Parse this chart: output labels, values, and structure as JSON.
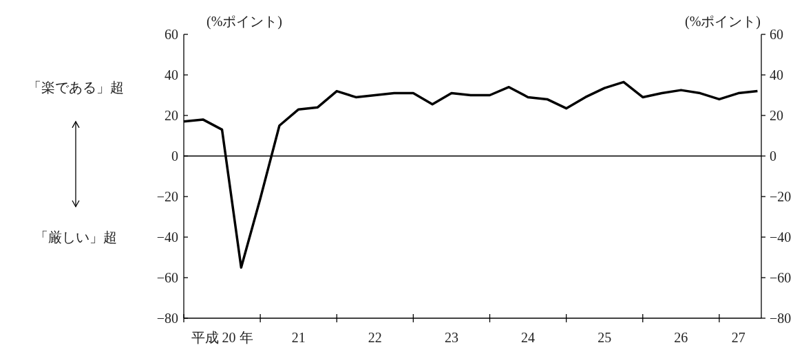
{
  "chart_data": {
    "type": "line",
    "ylabel": "(%ポイント)",
    "y2label": "(%ポイント)",
    "annotations": [
      "「楽である」超",
      "「厳しい」超"
    ],
    "categories": [
      null,
      null,
      "平成 20 年",
      null,
      null,
      null,
      "21",
      null,
      null,
      null,
      "22",
      null,
      null,
      null,
      "23",
      null,
      null,
      null,
      "24",
      null,
      null,
      null,
      "25",
      null,
      null,
      null,
      "26",
      null,
      null,
      "27",
      null
    ],
    "series": [
      {
        "color": "#000000",
        "values": [
          17,
          18,
          13,
          -55,
          -21,
          15,
          23,
          24,
          32,
          29,
          30,
          31,
          31,
          25.5,
          31,
          30,
          30,
          34,
          29,
          28,
          23.5,
          29,
          33.5,
          36.5,
          29,
          31,
          32.5,
          31,
          28,
          31,
          32
        ]
      }
    ],
    "ylim": [
      -80,
      60
    ],
    "yticks": [
      -80,
      -60,
      -40,
      -20,
      0,
      20,
      40,
      60
    ],
    "y2lim": [
      -80,
      60
    ],
    "y2ticks": [
      -80,
      -60,
      -40,
      -20,
      0,
      20,
      40,
      60
    ],
    "ref_lines": [
      {
        "axis": "y",
        "value": 0,
        "color": "#000000"
      }
    ],
    "line_style": "solid"
  }
}
